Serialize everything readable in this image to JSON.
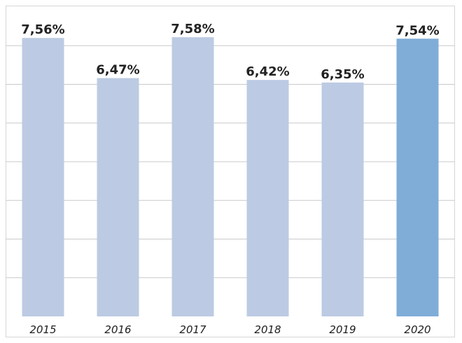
{
  "chart_data": {
    "type": "bar",
    "categories": [
      "2015",
      "2016",
      "2017",
      "2018",
      "2019",
      "2020"
    ],
    "values": [
      7.56,
      6.47,
      7.58,
      6.42,
      6.35,
      7.54
    ],
    "data_labels": [
      "7,56%",
      "6,47%",
      "7,58%",
      "6,42%",
      "6,35%",
      "7,54%"
    ],
    "ylim": [
      0,
      8.4
    ],
    "grid": true,
    "colors": {
      "bar": "#bccbe3",
      "highlight_bar": "#7fadd8",
      "grid": "#c9c9c9"
    },
    "highlight_category": "2020"
  }
}
